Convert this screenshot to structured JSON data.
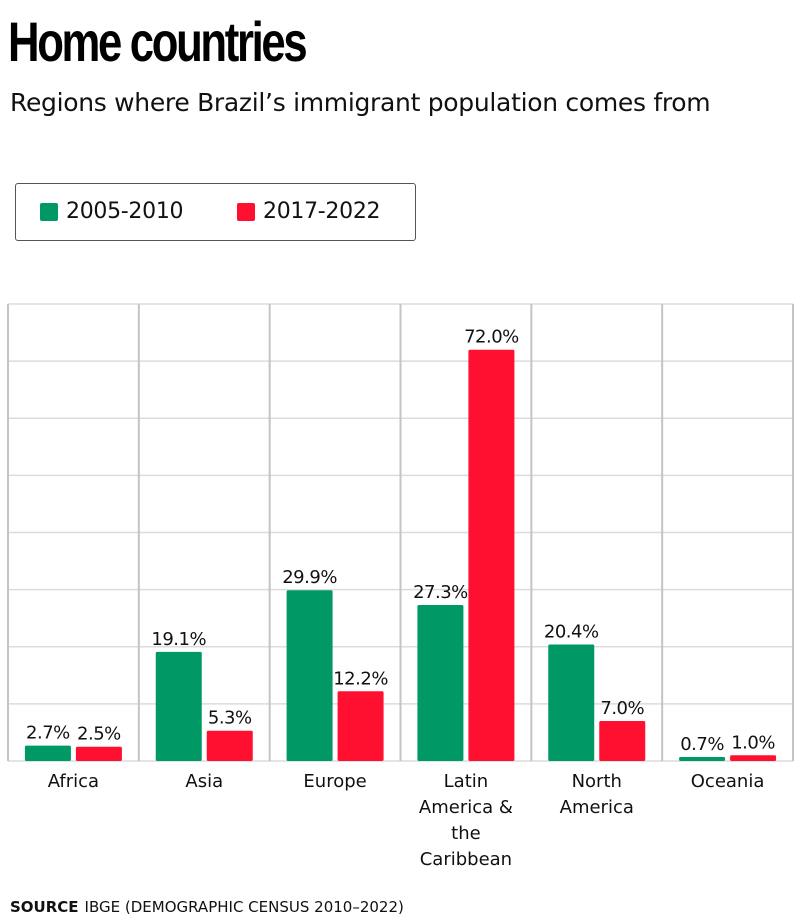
{
  "header": {
    "title": "Home countries",
    "subtitle": "Regions where Brazil’s immigrant population comes from"
  },
  "legend": {
    "items": [
      {
        "label": "2005-2010",
        "color": "#009966"
      },
      {
        "label": "2017-2022",
        "color": "#ff1030"
      }
    ]
  },
  "footer": {
    "source_label": "SOURCE",
    "source_text": "IBGE (DEMOGRAPHIC CENSUS 2010–2022)"
  },
  "chart_data": {
    "type": "bar",
    "title": "Home countries",
    "subtitle": "Regions where Brazil’s immigrant population comes from",
    "xlabel": "",
    "ylabel": "",
    "ylim": [
      0,
      80
    ],
    "ytick_step": 10,
    "grid": true,
    "legend_position": "top-left",
    "categories": [
      [
        "Africa"
      ],
      [
        "Asia"
      ],
      [
        "Europe"
      ],
      [
        "Latin",
        "America &",
        "the",
        "Caribbean"
      ],
      [
        "North",
        "America"
      ],
      [
        "Oceania"
      ]
    ],
    "category_names": [
      "Africa",
      "Asia",
      "Europe",
      "Latin America & the Caribbean",
      "North America",
      "Oceania"
    ],
    "series": [
      {
        "name": "2005-2010",
        "color": "#009966",
        "values": [
          2.7,
          19.1,
          29.9,
          27.3,
          20.4,
          0.7
        ],
        "labels": [
          "2.7%",
          "19.1%",
          "29.9%",
          "27.3%",
          "20.4%",
          "0.7%"
        ]
      },
      {
        "name": "2017-2022",
        "color": "#ff1030",
        "values": [
          2.5,
          5.3,
          12.2,
          72.0,
          7.0,
          1.0
        ],
        "labels": [
          "2.5%",
          "5.3%",
          "12.2%",
          "72.0%",
          "7.0%",
          "1.0%"
        ]
      }
    ]
  }
}
